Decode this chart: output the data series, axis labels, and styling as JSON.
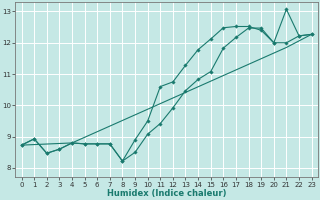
{
  "xlabel": "Humidex (Indice chaleur)",
  "xlim": [
    -0.5,
    23.5
  ],
  "ylim": [
    7.7,
    13.3
  ],
  "yticks": [
    8,
    9,
    10,
    11,
    12,
    13
  ],
  "xticks": [
    0,
    1,
    2,
    3,
    4,
    5,
    6,
    7,
    8,
    9,
    10,
    11,
    12,
    13,
    14,
    15,
    16,
    17,
    18,
    19,
    20,
    21,
    22,
    23
  ],
  "bg_color": "#c5e8e5",
  "grid_color": "#ffffff",
  "line_color": "#1a7a6e",
  "line1_x": [
    0,
    1,
    2,
    3,
    4,
    5,
    6,
    7,
    8,
    9,
    10,
    11,
    12,
    13,
    14,
    15,
    16,
    17,
    18,
    19,
    20,
    21,
    22,
    23
  ],
  "line1_y": [
    8.73,
    8.93,
    8.47,
    8.6,
    8.8,
    8.77,
    8.77,
    8.77,
    8.22,
    8.5,
    9.08,
    9.42,
    9.92,
    10.47,
    10.83,
    11.08,
    11.83,
    12.17,
    12.47,
    12.47,
    12.0,
    12.0,
    12.22,
    12.27
  ],
  "line2_x": [
    0,
    1,
    2,
    3,
    4,
    5,
    6,
    7,
    8,
    9,
    10,
    11,
    12,
    13,
    14,
    15,
    16,
    17,
    18,
    19,
    20,
    21,
    22,
    23
  ],
  "line2_y": [
    8.73,
    8.93,
    8.47,
    8.6,
    8.8,
    8.77,
    8.77,
    8.77,
    8.22,
    8.9,
    9.5,
    10.6,
    10.75,
    11.28,
    11.78,
    12.12,
    12.48,
    12.52,
    12.52,
    12.4,
    12.0,
    13.07,
    12.22,
    12.27
  ],
  "line3_x": [
    0,
    4,
    21,
    23
  ],
  "line3_y": [
    8.73,
    8.8,
    11.85,
    12.27
  ]
}
